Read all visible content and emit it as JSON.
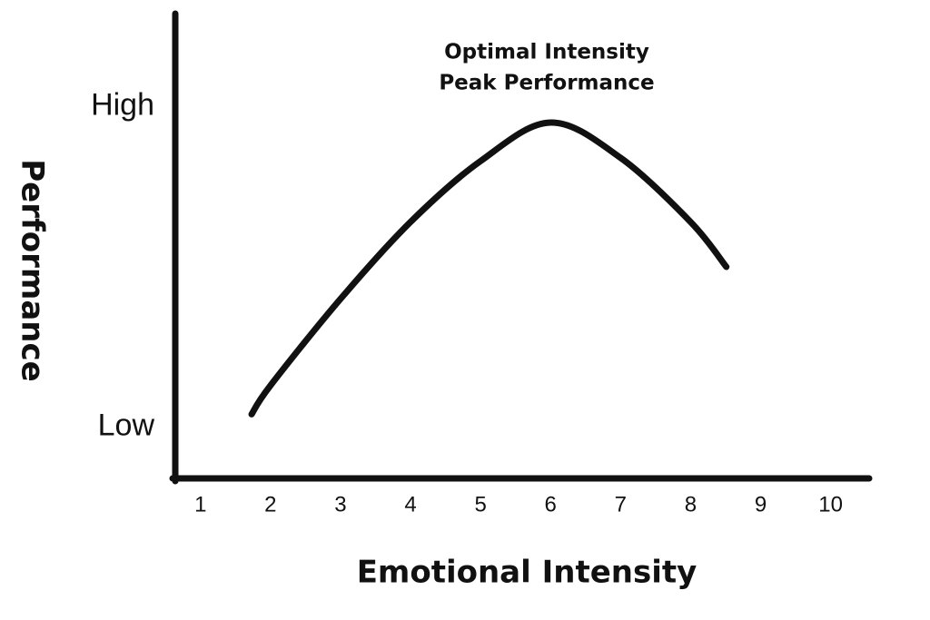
{
  "chart_data": {
    "type": "line",
    "x_label": "Emotional Intensity",
    "y_label": "Performance",
    "annotations": [
      "Optimal Intensity",
      "Peak Performance"
    ],
    "series": [
      {
        "x": [
          1.73,
          2,
          3,
          4,
          5,
          6,
          7,
          8,
          8.51
        ],
        "values": [
          0.04,
          0.13,
          0.4,
          0.64,
          0.83,
          0.95,
          0.84,
          0.64,
          0.5
        ],
        "color": "#111111"
      }
    ],
    "xlim": [
      0.64,
      10.55
    ],
    "xticks": [
      1,
      2,
      3,
      4,
      5,
      6,
      7,
      8,
      9,
      10
    ],
    "ylim": [
      -0.16,
      1.29
    ],
    "yticks": [
      {
        "value": 0,
        "label": "Low"
      },
      {
        "value": 1,
        "label": "High"
      }
    ],
    "grid": false
  }
}
